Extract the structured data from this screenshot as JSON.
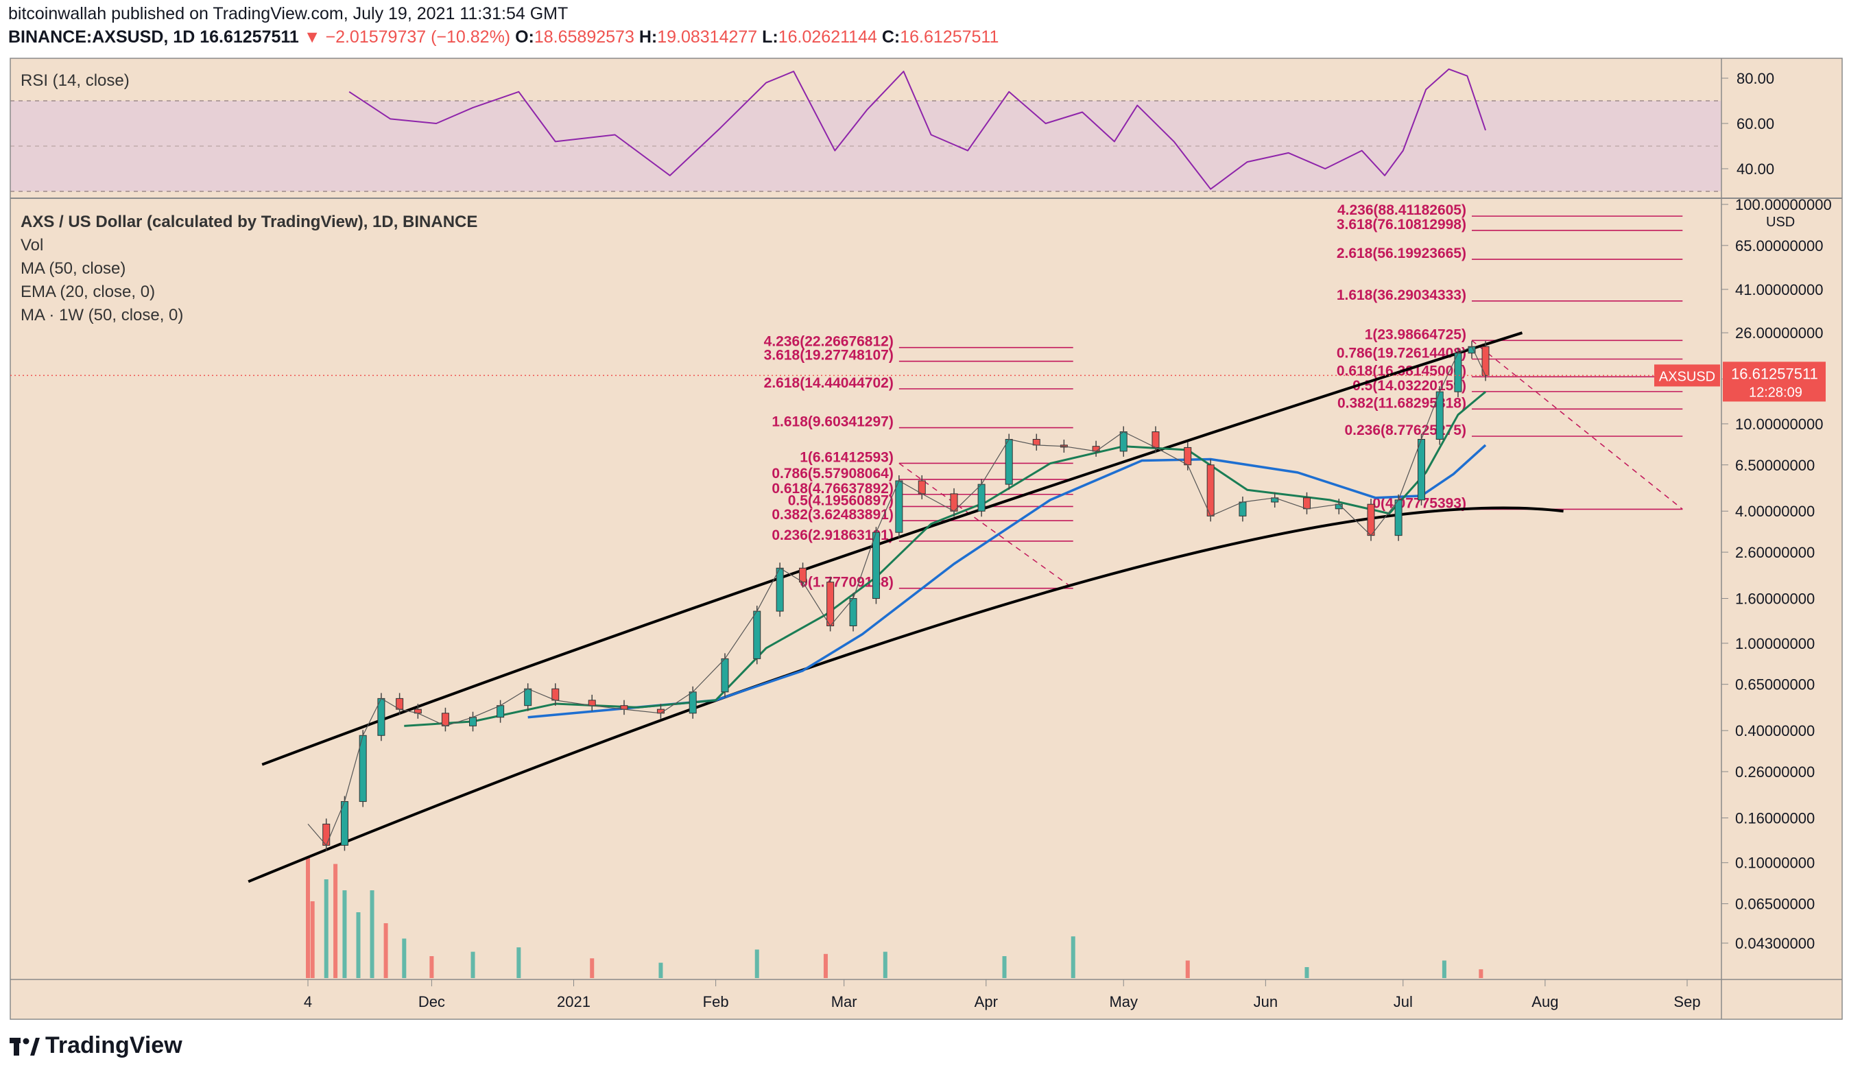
{
  "header": {
    "publisher_line": "bitcoinwallah published on TradingView.com, July 19, 2021 11:31:54 GMT",
    "symbol": "BINANCE:AXSUSD, 1D",
    "last": "16.61257511",
    "change": "▼ −2.01579737 (−10.82%)",
    "o_label": "O:",
    "o": "18.65892573",
    "h_label": "H:",
    "h": "19.08314277",
    "l_label": "L:",
    "l": "16.02621144",
    "c_label": "C:",
    "c": "16.61257511"
  },
  "rsi_panel": {
    "label": "RSI (14, close)",
    "ticks": [
      "80.00",
      "60.00",
      "40.00"
    ]
  },
  "main_panel": {
    "legend": [
      "AXS / US Dollar (calculated by TradingView), 1D, BINANCE",
      "Vol",
      "MA (50, close)",
      "EMA (20, close, 0)",
      "MA · 1W (50, close, 0)"
    ],
    "currency": "USD",
    "price_tag_symbol": "AXSUSD",
    "price_tag_value": "16.61257511",
    "price_tag_time": "12:28:09"
  },
  "colors": {
    "background": "#f2dfcc",
    "rsi_band": "#e7d0d6",
    "rsi_line": "#8e24aa",
    "fib": "#c2185b",
    "ema": "#1a7d55",
    "ma": "#1e6fd1",
    "up": "#26a69a",
    "down": "#ef5350",
    "channel": "#000000"
  },
  "brand": "TradingView",
  "chart_data": {
    "type": "line",
    "scale": "log",
    "xaxis_ticks": [
      "4",
      "Dec",
      "2021",
      "Feb",
      "Mar",
      "Apr",
      "May",
      "Jun",
      "Jul",
      "Aug",
      "Sep"
    ],
    "xaxis_dates": [
      "2020-11-04",
      "2020-12-01",
      "2021-01-01",
      "2021-02-01",
      "2021-03-01",
      "2021-04-01",
      "2021-05-01",
      "2021-06-01",
      "2021-07-01",
      "2021-08-01",
      "2021-09-01"
    ],
    "yaxis_ticks": [
      "100.00000000",
      "65.00000000",
      "41.00000000",
      "26.00000000",
      "16.00000000",
      "10.00000000",
      "6.50000000",
      "4.00000000",
      "2.60000000",
      "1.60000000",
      "1.00000000",
      "0.65000000",
      "0.40000000",
      "0.26000000",
      "0.16000000",
      "0.10000000",
      "0.06500000",
      "0.04300000"
    ],
    "yaxis_values": [
      100,
      65,
      41,
      26,
      16,
      10,
      6.5,
      4,
      2.6,
      1.6,
      1,
      0.65,
      0.4,
      0.26,
      0.16,
      0.1,
      0.065,
      0.043
    ],
    "price_series": [
      {
        "date": "2020-11-04",
        "close": 0.15
      },
      {
        "date": "2020-11-08",
        "close": 0.12
      },
      {
        "date": "2020-11-12",
        "close": 0.19
      },
      {
        "date": "2020-11-16",
        "close": 0.38
      },
      {
        "date": "2020-11-20",
        "close": 0.56
      },
      {
        "date": "2020-11-24",
        "close": 0.5
      },
      {
        "date": "2020-11-28",
        "close": 0.48
      },
      {
        "date": "2020-12-04",
        "close": 0.42
      },
      {
        "date": "2020-12-10",
        "close": 0.46
      },
      {
        "date": "2020-12-16",
        "close": 0.52
      },
      {
        "date": "2020-12-22",
        "close": 0.62
      },
      {
        "date": "2020-12-28",
        "close": 0.55
      },
      {
        "date": "2021-01-05",
        "close": 0.52
      },
      {
        "date": "2021-01-12",
        "close": 0.5
      },
      {
        "date": "2021-01-20",
        "close": 0.48
      },
      {
        "date": "2021-01-27",
        "close": 0.6
      },
      {
        "date": "2021-02-03",
        "close": 0.85
      },
      {
        "date": "2021-02-10",
        "close": 1.4
      },
      {
        "date": "2021-02-15",
        "close": 2.2
      },
      {
        "date": "2021-02-20",
        "close": 1.9
      },
      {
        "date": "2021-02-26",
        "close": 1.2
      },
      {
        "date": "2021-03-03",
        "close": 1.6
      },
      {
        "date": "2021-03-08",
        "close": 3.2
      },
      {
        "date": "2021-03-13",
        "close": 5.5
      },
      {
        "date": "2021-03-18",
        "close": 4.8
      },
      {
        "date": "2021-03-25",
        "close": 4.0
      },
      {
        "date": "2021-03-31",
        "close": 5.3
      },
      {
        "date": "2021-04-06",
        "close": 8.5
      },
      {
        "date": "2021-04-12",
        "close": 8.0
      },
      {
        "date": "2021-04-18",
        "close": 7.9
      },
      {
        "date": "2021-04-25",
        "close": 7.5
      },
      {
        "date": "2021-05-01",
        "close": 9.2
      },
      {
        "date": "2021-05-08",
        "close": 7.8
      },
      {
        "date": "2021-05-15",
        "close": 6.5
      },
      {
        "date": "2021-05-20",
        "close": 3.8
      },
      {
        "date": "2021-05-27",
        "close": 4.4
      },
      {
        "date": "2021-06-03",
        "close": 4.6
      },
      {
        "date": "2021-06-10",
        "close": 4.1
      },
      {
        "date": "2021-06-17",
        "close": 4.3
      },
      {
        "date": "2021-06-24",
        "close": 3.1
      },
      {
        "date": "2021-06-30",
        "close": 4.5
      },
      {
        "date": "2021-07-05",
        "close": 8.5
      },
      {
        "date": "2021-07-09",
        "close": 14.0
      },
      {
        "date": "2021-07-13",
        "close": 21.0
      },
      {
        "date": "2021-07-16",
        "close": 22.5
      },
      {
        "date": "2021-07-19",
        "close": 16.61
      }
    ],
    "ema20": [
      {
        "date": "2020-11-25",
        "v": 0.42
      },
      {
        "date": "2020-12-10",
        "v": 0.44
      },
      {
        "date": "2020-12-28",
        "v": 0.53
      },
      {
        "date": "2021-01-15",
        "v": 0.51
      },
      {
        "date": "2021-02-01",
        "v": 0.55
      },
      {
        "date": "2021-02-12",
        "v": 0.95
      },
      {
        "date": "2021-02-25",
        "v": 1.35
      },
      {
        "date": "2021-03-08",
        "v": 2.0
      },
      {
        "date": "2021-03-20",
        "v": 3.5
      },
      {
        "date": "2021-04-01",
        "v": 4.4
      },
      {
        "date": "2021-04-15",
        "v": 6.6
      },
      {
        "date": "2021-05-01",
        "v": 7.9
      },
      {
        "date": "2021-05-15",
        "v": 7.6
      },
      {
        "date": "2021-05-28",
        "v": 5.0
      },
      {
        "date": "2021-06-15",
        "v": 4.5
      },
      {
        "date": "2021-06-28",
        "v": 3.9
      },
      {
        "date": "2021-07-06",
        "v": 6.0
      },
      {
        "date": "2021-07-13",
        "v": 11.0
      },
      {
        "date": "2021-07-19",
        "v": 14.0
      }
    ],
    "ma50": [
      {
        "date": "2020-12-22",
        "v": 0.46
      },
      {
        "date": "2021-01-10",
        "v": 0.5
      },
      {
        "date": "2021-02-01",
        "v": 0.55
      },
      {
        "date": "2021-02-20",
        "v": 0.75
      },
      {
        "date": "2021-03-05",
        "v": 1.1
      },
      {
        "date": "2021-03-25",
        "v": 2.3
      },
      {
        "date": "2021-04-15",
        "v": 4.5
      },
      {
        "date": "2021-05-05",
        "v": 6.8
      },
      {
        "date": "2021-05-20",
        "v": 6.9
      },
      {
        "date": "2021-06-08",
        "v": 6.0
      },
      {
        "date": "2021-06-25",
        "v": 4.6
      },
      {
        "date": "2021-07-05",
        "v": 4.7
      },
      {
        "date": "2021-07-12",
        "v": 5.9
      },
      {
        "date": "2021-07-19",
        "v": 8.0
      }
    ],
    "rsi": [
      {
        "date": "2020-11-13",
        "v": 74
      },
      {
        "date": "2020-11-22",
        "v": 62
      },
      {
        "date": "2020-12-02",
        "v": 60
      },
      {
        "date": "2020-12-10",
        "v": 67
      },
      {
        "date": "2020-12-20",
        "v": 74
      },
      {
        "date": "2020-12-28",
        "v": 52
      },
      {
        "date": "2021-01-10",
        "v": 55
      },
      {
        "date": "2021-01-22",
        "v": 37
      },
      {
        "date": "2021-02-02",
        "v": 58
      },
      {
        "date": "2021-02-12",
        "v": 78
      },
      {
        "date": "2021-02-18",
        "v": 83
      },
      {
        "date": "2021-02-27",
        "v": 48
      },
      {
        "date": "2021-03-06",
        "v": 66
      },
      {
        "date": "2021-03-14",
        "v": 83
      },
      {
        "date": "2021-03-20",
        "v": 55
      },
      {
        "date": "2021-03-28",
        "v": 48
      },
      {
        "date": "2021-04-06",
        "v": 74
      },
      {
        "date": "2021-04-14",
        "v": 60
      },
      {
        "date": "2021-04-22",
        "v": 65
      },
      {
        "date": "2021-04-29",
        "v": 52
      },
      {
        "date": "2021-05-04",
        "v": 68
      },
      {
        "date": "2021-05-12",
        "v": 52
      },
      {
        "date": "2021-05-20",
        "v": 31
      },
      {
        "date": "2021-05-28",
        "v": 43
      },
      {
        "date": "2021-06-06",
        "v": 47
      },
      {
        "date": "2021-06-14",
        "v": 40
      },
      {
        "date": "2021-06-22",
        "v": 48
      },
      {
        "date": "2021-06-27",
        "v": 37
      },
      {
        "date": "2021-07-01",
        "v": 48
      },
      {
        "date": "2021-07-06",
        "v": 75
      },
      {
        "date": "2021-07-11",
        "v": 84
      },
      {
        "date": "2021-07-15",
        "v": 81
      },
      {
        "date": "2021-07-19",
        "v": 57
      }
    ],
    "channel_upper": [
      {
        "date": "2020-10-25",
        "v": 0.28
      },
      {
        "date": "2021-03-01",
        "v": 2.5
      },
      {
        "date": "2021-07-27",
        "v": 26.0
      }
    ],
    "channel_lower": [
      {
        "date": "2020-10-22",
        "v": 0.082
      },
      {
        "date": "2021-04-20",
        "v": 1.85
      },
      {
        "date": "2021-08-05",
        "v": 4.0
      }
    ],
    "fib_sets": [
      {
        "start": "2021-03-13",
        "end": "2021-04-20",
        "levels": [
          {
            "label": "4.236(22.26676812)",
            "v": 22.27
          },
          {
            "label": "3.618(19.27748107)",
            "v": 19.28
          },
          {
            "label": "2.618(14.44044702)",
            "v": 14.44
          },
          {
            "label": "1.618(9.60341297)",
            "v": 9.6
          },
          {
            "label": "1(6.61412593)",
            "v": 6.61
          },
          {
            "label": "0.786(5.57908064)",
            "v": 5.58
          },
          {
            "label": "0.618(4.76637892)",
            "v": 4.77
          },
          {
            "label": "0.5(4.19560897)",
            "v": 4.2
          },
          {
            "label": "0.382(3.62483891)",
            "v": 3.62
          },
          {
            "label": "0.236(2.91863191)",
            "v": 2.92
          },
          {
            "label": "0(1.77709188)",
            "v": 1.78
          }
        ]
      },
      {
        "start": "2021-07-16",
        "end": "2021-08-31",
        "levels": [
          {
            "label": "4.236(88.41182605)",
            "v": 88.41
          },
          {
            "label": "3.618(76.10812998)",
            "v": 76.11
          },
          {
            "label": "2.618(56.19923665)",
            "v": 56.2
          },
          {
            "label": "1.618(36.29034333)",
            "v": 36.29
          },
          {
            "label": "1(23.98664725)",
            "v": 23.99
          },
          {
            "label": "0.786(19.72614408)",
            "v": 19.73
          },
          {
            "label": "0.618(16.38145000)",
            "v": 16.38
          },
          {
            "label": "0.5(14.03220159)",
            "v": 14.03
          },
          {
            "label": "0.382(11.68295318)",
            "v": 11.68
          },
          {
            "label": "0.236(8.77625275)",
            "v": 8.78
          },
          {
            "label": "0(4.07775393)",
            "v": 4.08
          }
        ]
      }
    ],
    "volume": [
      {
        "date": "2020-11-04",
        "v": 0.55,
        "up": false
      },
      {
        "date": "2020-11-05",
        "v": 0.35,
        "up": false
      },
      {
        "date": "2020-11-08",
        "v": 0.45,
        "up": true
      },
      {
        "date": "2020-11-10",
        "v": 0.52,
        "up": false
      },
      {
        "date": "2020-11-12",
        "v": 0.4,
        "up": true
      },
      {
        "date": "2020-11-15",
        "v": 0.3,
        "up": true
      },
      {
        "date": "2020-11-18",
        "v": 0.4,
        "up": true
      },
      {
        "date": "2020-11-21",
        "v": 0.25,
        "up": false
      },
      {
        "date": "2020-11-25",
        "v": 0.18,
        "up": true
      },
      {
        "date": "2020-12-01",
        "v": 0.1,
        "up": false
      },
      {
        "date": "2020-12-10",
        "v": 0.12,
        "up": true
      },
      {
        "date": "2020-12-20",
        "v": 0.14,
        "up": true
      },
      {
        "date": "2021-01-05",
        "v": 0.09,
        "up": false
      },
      {
        "date": "2021-01-20",
        "v": 0.07,
        "up": true
      },
      {
        "date": "2021-02-10",
        "v": 0.13,
        "up": true
      },
      {
        "date": "2021-02-25",
        "v": 0.11,
        "up": false
      },
      {
        "date": "2021-03-10",
        "v": 0.12,
        "up": true
      },
      {
        "date": "2021-04-05",
        "v": 0.1,
        "up": true
      },
      {
        "date": "2021-04-20",
        "v": 0.19,
        "up": true
      },
      {
        "date": "2021-05-15",
        "v": 0.08,
        "up": false
      },
      {
        "date": "2021-06-10",
        "v": 0.05,
        "up": true
      },
      {
        "date": "2021-07-10",
        "v": 0.08,
        "up": true
      },
      {
        "date": "2021-07-18",
        "v": 0.04,
        "up": false
      }
    ]
  }
}
